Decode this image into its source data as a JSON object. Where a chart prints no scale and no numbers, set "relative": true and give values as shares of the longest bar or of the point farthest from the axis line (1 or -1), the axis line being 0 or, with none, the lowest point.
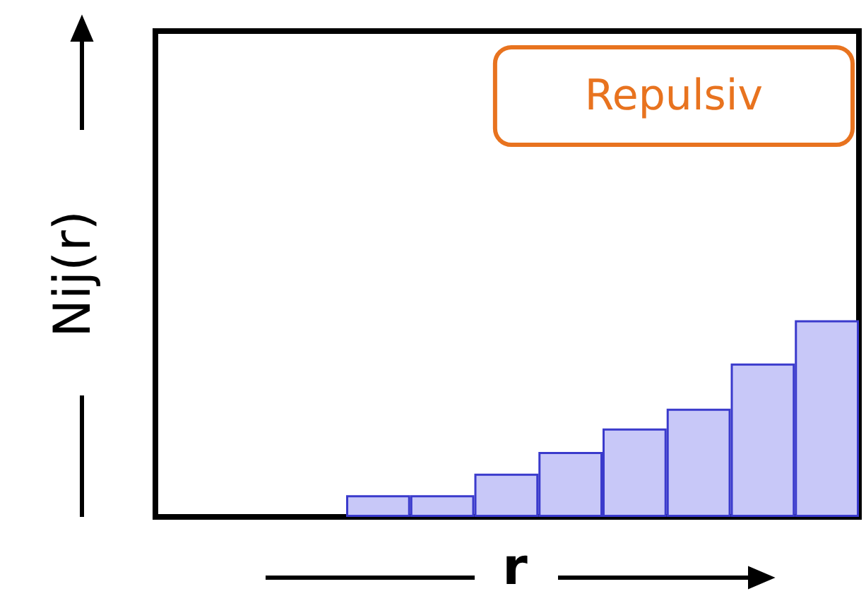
{
  "chart_data": {
    "type": "bar",
    "relative": true,
    "xlabel": "r",
    "ylabel": "Nij(r)",
    "annotations": [
      "Repulsiv"
    ],
    "categories": [
      null,
      null,
      null,
      null,
      null,
      null,
      null,
      null
    ],
    "values": [
      0.11,
      0.11,
      0.22,
      0.33,
      0.45,
      0.55,
      0.78,
      1
    ],
    "color": "#c8c8f8"
  }
}
